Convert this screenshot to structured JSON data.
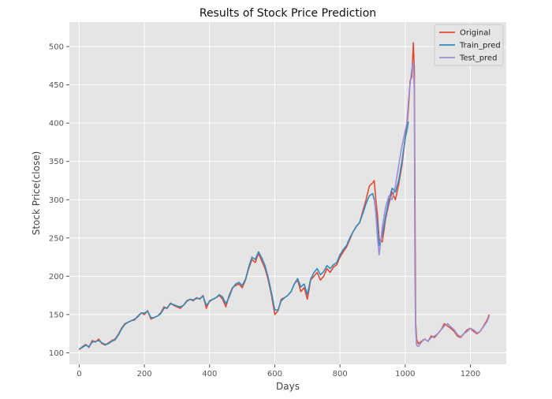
{
  "chart_data": {
    "type": "line",
    "title": "Results of Stock Price Prediction",
    "xlabel": "Days",
    "ylabel": "Stock Price(close)",
    "xlim": [
      -30,
      1310
    ],
    "ylim": [
      85,
      532
    ],
    "xticks": [
      0,
      200,
      400,
      600,
      800,
      1000,
      1200
    ],
    "yticks": [
      100,
      150,
      200,
      250,
      300,
      350,
      400,
      450,
      500
    ],
    "grid": true,
    "legend_position": "top-right",
    "legend": [
      "Original",
      "Train_pred",
      "Test_pred"
    ],
    "colors": {
      "Original": "#e24a33",
      "Train_pred": "#348abd",
      "Test_pred": "#988ed5",
      "background": "#e5e5e5",
      "grid": "#ffffff"
    },
    "series": [
      {
        "name": "Original",
        "x": [
          0,
          10,
          20,
          30,
          40,
          50,
          60,
          70,
          80,
          90,
          100,
          110,
          120,
          130,
          140,
          150,
          160,
          170,
          180,
          190,
          200,
          210,
          220,
          230,
          240,
          250,
          260,
          270,
          280,
          290,
          300,
          310,
          320,
          330,
          340,
          350,
          360,
          370,
          380,
          390,
          400,
          410,
          420,
          430,
          440,
          450,
          460,
          470,
          480,
          490,
          500,
          510,
          520,
          530,
          540,
          550,
          560,
          570,
          580,
          590,
          600,
          610,
          620,
          630,
          640,
          650,
          660,
          670,
          680,
          690,
          700,
          710,
          720,
          730,
          740,
          750,
          760,
          770,
          780,
          790,
          800,
          810,
          820,
          830,
          840,
          850,
          860,
          870,
          880,
          890,
          900,
          905,
          910,
          915,
          920,
          930,
          940,
          950,
          960,
          970,
          980,
          990,
          1000,
          1005,
          1010,
          1015,
          1020,
          1025,
          1028,
          1030,
          1032,
          1035,
          1040,
          1050,
          1060,
          1070,
          1080,
          1090,
          1100,
          1110,
          1120,
          1130,
          1140,
          1150,
          1160,
          1170,
          1180,
          1190,
          1200,
          1210,
          1220,
          1230,
          1240,
          1250,
          1258
        ],
        "values": [
          104,
          108,
          111,
          107,
          116,
          114,
          118,
          112,
          110,
          113,
          116,
          118,
          124,
          132,
          138,
          140,
          142,
          143,
          148,
          152,
          150,
          155,
          144,
          146,
          148,
          152,
          160,
          158,
          165,
          162,
          160,
          158,
          162,
          168,
          170,
          168,
          172,
          170,
          175,
          158,
          168,
          170,
          172,
          175,
          170,
          160,
          175,
          185,
          188,
          190,
          185,
          195,
          210,
          222,
          218,
          230,
          220,
          210,
          195,
          175,
          150,
          155,
          170,
          172,
          175,
          180,
          190,
          195,
          180,
          185,
          170,
          195,
          200,
          205,
          195,
          200,
          210,
          205,
          212,
          215,
          225,
          232,
          238,
          248,
          258,
          265,
          270,
          285,
          300,
          318,
          322,
          325,
          300,
          280,
          248,
          245,
          275,
          295,
          310,
          300,
          320,
          345,
          380,
          395,
          420,
          455,
          460,
          505,
          470,
          300,
          140,
          118,
          112,
          115,
          118,
          115,
          122,
          120,
          125,
          130,
          138,
          135,
          132,
          128,
          122,
          120,
          125,
          130,
          132,
          128,
          125,
          128,
          135,
          142,
          150
        ]
      },
      {
        "name": "Train_pred",
        "x": [
          0,
          10,
          20,
          30,
          40,
          50,
          60,
          70,
          80,
          90,
          100,
          110,
          120,
          130,
          140,
          150,
          160,
          170,
          180,
          190,
          200,
          210,
          220,
          230,
          240,
          250,
          260,
          270,
          280,
          290,
          300,
          310,
          320,
          330,
          340,
          350,
          360,
          370,
          380,
          390,
          400,
          410,
          420,
          430,
          440,
          450,
          460,
          470,
          480,
          490,
          500,
          510,
          520,
          530,
          540,
          550,
          560,
          570,
          580,
          590,
          600,
          610,
          620,
          630,
          640,
          650,
          660,
          670,
          680,
          690,
          700,
          710,
          720,
          730,
          740,
          750,
          760,
          770,
          780,
          790,
          800,
          810,
          820,
          830,
          840,
          850,
          860,
          870,
          880,
          890,
          900,
          905,
          910,
          915,
          920,
          930,
          940,
          950,
          960,
          970,
          980,
          990,
          1000,
          1005,
          1010
        ],
        "values": [
          105,
          107,
          110,
          108,
          114,
          115,
          116,
          113,
          111,
          112,
          115,
          117,
          123,
          131,
          137,
          140,
          142,
          144,
          147,
          152,
          152,
          154,
          146,
          146,
          148,
          151,
          158,
          159,
          164,
          163,
          161,
          160,
          162,
          167,
          170,
          169,
          171,
          171,
          174,
          162,
          167,
          170,
          172,
          176,
          173,
          164,
          173,
          184,
          190,
          192,
          188,
          196,
          212,
          225,
          222,
          232,
          224,
          214,
          198,
          178,
          156,
          156,
          168,
          172,
          175,
          180,
          190,
          197,
          186,
          190,
          176,
          196,
          205,
          210,
          202,
          206,
          214,
          210,
          215,
          218,
          228,
          235,
          240,
          250,
          258,
          265,
          270,
          282,
          295,
          305,
          308,
          300,
          285,
          268,
          240,
          255,
          278,
          300,
          315,
          310,
          325,
          350,
          380,
          390,
          402
        ]
      },
      {
        "name": "Test_pred",
        "x": [
          905,
          910,
          915,
          920,
          930,
          940,
          950,
          960,
          970,
          980,
          990,
          1000,
          1005,
          1010,
          1015,
          1020,
          1025,
          1028,
          1030,
          1032,
          1035,
          1040,
          1050,
          1060,
          1070,
          1080,
          1090,
          1100,
          1110,
          1120,
          1130,
          1140,
          1150,
          1160,
          1170,
          1180,
          1190,
          1200,
          1210,
          1220,
          1230,
          1240,
          1250,
          1258
        ],
        "values": [
          300,
          282,
          250,
          228,
          265,
          290,
          305,
          300,
          318,
          345,
          370,
          390,
          400,
          430,
          450,
          470,
          480,
          440,
          200,
          130,
          110,
          108,
          114,
          118,
          115,
          120,
          122,
          125,
          130,
          135,
          138,
          134,
          130,
          124,
          121,
          125,
          128,
          132,
          130,
          126,
          128,
          134,
          140,
          148
        ]
      }
    ]
  }
}
